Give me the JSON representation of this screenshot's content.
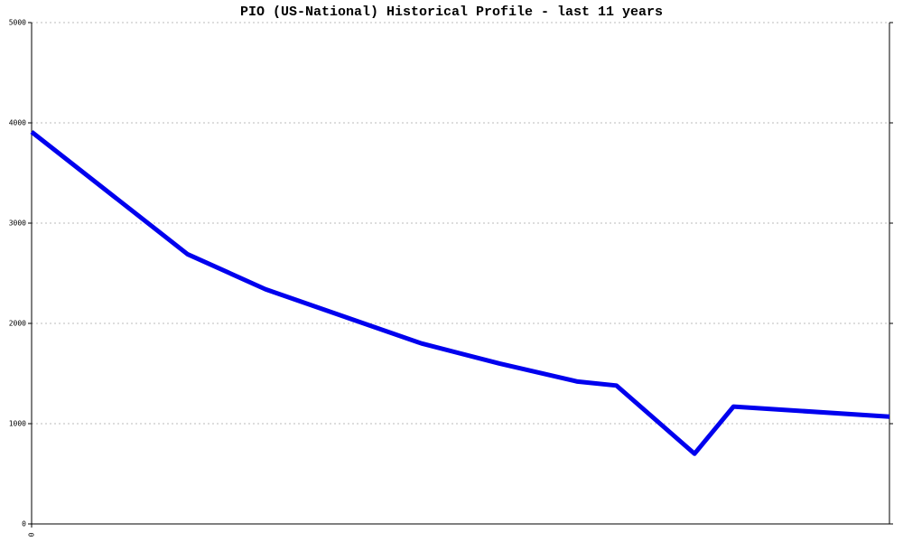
{
  "chart_data": {
    "type": "line",
    "title": "PIO (US-National) Historical Profile - last 11 years",
    "x": [
      0,
      2,
      3,
      4,
      5,
      6,
      7,
      7.5,
      8.5,
      9,
      11
    ],
    "series": [
      {
        "color": "#0000ee",
        "values": [
          3910,
          2690,
          2340,
          2070,
          1800,
          1600,
          1420,
          1380,
          700,
          1170,
          1070
        ]
      }
    ],
    "xlim": [
      0,
      11
    ],
    "xticks": [
      0
    ],
    "ylim": [
      0,
      5000
    ],
    "yticks": [
      0,
      1000,
      2000,
      3000,
      4000,
      5000
    ],
    "grid": true
  }
}
